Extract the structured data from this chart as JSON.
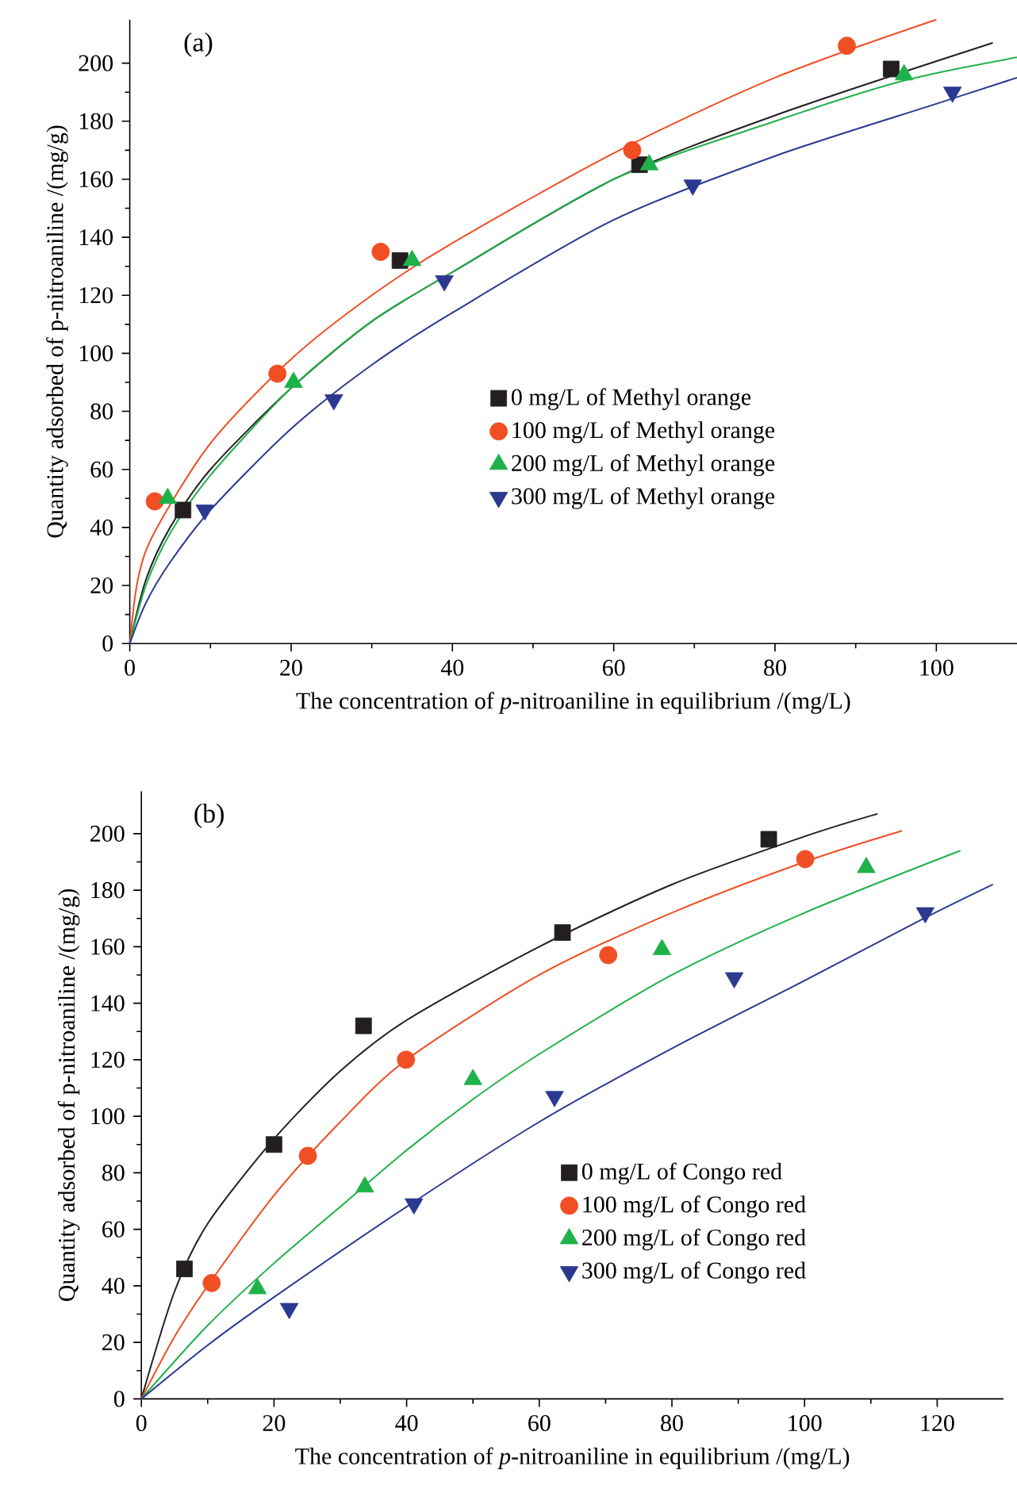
{
  "chart_data": [
    {
      "type": "scatter",
      "title": "(a)",
      "xlabel": "The concentration of *p*-nitroaniline in equilibrium /(mg/L)",
      "ylabel": "Quantity adsorbed of p-nitroaniline /(mg/g)",
      "xlim": [
        0,
        110
      ],
      "ylim": [
        0,
        215
      ],
      "xticks": [
        0,
        20,
        40,
        60,
        80,
        100
      ],
      "yticks": [
        0,
        20,
        40,
        60,
        80,
        100,
        120,
        140,
        160,
        180,
        200
      ],
      "legend": "bottom right",
      "grid": false,
      "series": [
        {
          "name": "0 mg/L of Methyl orange",
          "marker": "square",
          "color": "#231f20",
          "x": [
            6.6,
            33.5,
            63.2,
            94.4
          ],
          "values": [
            46,
            132,
            165,
            198
          ]
        },
        {
          "name": "100 mg/L of Methyl orange",
          "marker": "circle",
          "color": "#f04e23",
          "x": [
            3.1,
            18.3,
            31.1,
            62.3,
            88.9
          ],
          "values": [
            49,
            93,
            135,
            170,
            206
          ]
        },
        {
          "name": "200 mg/L of Methyl orange",
          "marker": "triangle",
          "color": "#1fb14a",
          "x": [
            4.7,
            20.3,
            35,
            64.4,
            96
          ],
          "values": [
            50,
            90,
            132,
            165,
            196
          ]
        },
        {
          "name": "300 mg/L of Methyl orange",
          "marker": "triangle-down",
          "color": "#2b3990",
          "x": [
            9.3,
            25.3,
            39,
            69.8,
            102
          ],
          "values": [
            46,
            84,
            125,
            158,
            190
          ]
        },
        {
          "type": "line",
          "color": "#231f20",
          "x": [
            0,
            2,
            5,
            10,
            20,
            30,
            40,
            60,
            80,
            107
          ],
          "values": [
            0,
            22,
            40,
            60,
            88,
            111,
            128,
            160,
            182,
            207
          ]
        },
        {
          "type": "line",
          "color": "#f04e23",
          "x": [
            0,
            1,
            3,
            10,
            20,
            30,
            40,
            60,
            80,
            100
          ],
          "values": [
            0,
            22,
            38,
            69,
            98,
            120,
            138,
            169,
            195,
            215
          ]
        },
        {
          "type": "line",
          "color": "#1fb14a",
          "x": [
            0,
            2,
            5,
            10,
            20,
            30,
            40,
            60,
            80,
            96,
            110
          ],
          "values": [
            0,
            20,
            38,
            58,
            88,
            111,
            128,
            160,
            180,
            194,
            202
          ]
        },
        {
          "type": "line",
          "color": "#2b3990",
          "x": [
            0,
            2,
            5,
            10,
            20,
            30,
            40,
            60,
            80,
            100,
            110
          ],
          "values": [
            0,
            14,
            28,
            46,
            74,
            96,
            114,
            146,
            168,
            186,
            195
          ]
        }
      ]
    },
    {
      "type": "scatter",
      "title": "(b)",
      "xlabel": "The concentration of *p*-nitroaniline in equilibrium /(mg/L)",
      "ylabel": "Quantity adsorbed of p-nitroaniline /(mg/g)",
      "xlim": [
        0,
        130
      ],
      "ylim": [
        0,
        215
      ],
      "xticks": [
        0,
        20,
        40,
        60,
        80,
        100,
        120
      ],
      "yticks": [
        0,
        20,
        40,
        60,
        80,
        100,
        120,
        140,
        160,
        180,
        200
      ],
      "legend": "bottom right",
      "grid": false,
      "series": [
        {
          "name": "0 mg/L of Congo red",
          "marker": "square",
          "color": "#231f20",
          "x": [
            6.5,
            20,
            33.5,
            63.5,
            94.6
          ],
          "values": [
            46,
            90,
            132,
            165,
            198
          ]
        },
        {
          "name": "100 mg/L of Congo red",
          "marker": "circle",
          "color": "#f04e23",
          "x": [
            10.6,
            25.1,
            39.9,
            70.4,
            100.1
          ],
          "values": [
            41,
            86,
            120,
            157,
            191
          ]
        },
        {
          "name": "200 mg/L of Congo red",
          "marker": "triangle",
          "color": "#1fb14a",
          "x": [
            17.5,
            33.7,
            50,
            78.5,
            109.3
          ],
          "values": [
            39,
            75,
            113,
            159,
            188
          ]
        },
        {
          "name": "300 mg/L of Congo red",
          "marker": "triangle-down",
          "color": "#2b3990",
          "x": [
            22.3,
            41.1,
            62.3,
            89.4,
            118.2
          ],
          "values": [
            32,
            69,
            107,
            149,
            172
          ]
        },
        {
          "type": "line",
          "color": "#231f20",
          "x": [
            0,
            5,
            10,
            20,
            30,
            40,
            60,
            80,
            100,
            111
          ],
          "values": [
            0,
            38,
            62,
            92,
            116,
            134,
            160,
            182,
            199,
            207
          ]
        },
        {
          "type": "line",
          "color": "#f04e23",
          "x": [
            0,
            5,
            10,
            20,
            30,
            40,
            60,
            80,
            100,
            114.7
          ],
          "values": [
            0,
            22,
            40,
            72,
            98,
            120,
            150,
            172,
            190,
            201
          ]
        },
        {
          "type": "line",
          "color": "#1fb14a",
          "x": [
            0,
            10,
            20,
            30,
            40,
            50,
            60,
            80,
            100,
            123.5
          ],
          "values": [
            0,
            26,
            48,
            68,
            88,
            106,
            122,
            150,
            172,
            194
          ]
        },
        {
          "type": "line",
          "color": "#2b3990",
          "x": [
            0,
            10,
            20,
            40,
            60,
            80,
            100,
            118,
            128.4
          ],
          "values": [
            0,
            19,
            36,
            68,
            98,
            124,
            148,
            170,
            182
          ]
        }
      ]
    }
  ]
}
